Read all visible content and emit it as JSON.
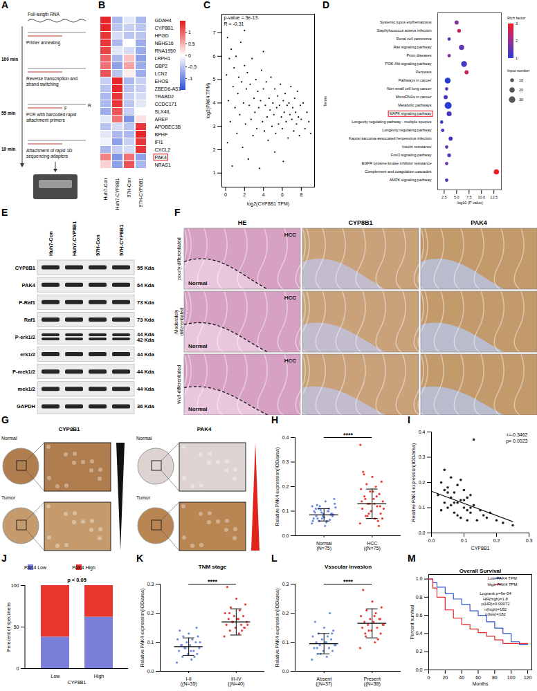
{
  "figure": {
    "A": {
      "panel": "A",
      "title": "Full-length RNA",
      "stages": [
        {
          "time": "100 min",
          "steps": [
            "Primer annealing",
            "Reverse transcription and strand switching"
          ]
        },
        {
          "time": "55 min",
          "steps": [
            "PCR with barcoded rapid attachment primers"
          ],
          "primer_labels": [
            "F",
            "R"
          ]
        },
        {
          "time": "10 min",
          "steps": [
            "Attachment of rapid 1D sequencing adapters"
          ]
        }
      ]
    },
    "E": {
      "panel": "E",
      "lanes": [
        "Huh7-Con",
        "Huh7-CYP8B1",
        "97H-Con",
        "97H-CYP8B1"
      ],
      "rows": [
        {
          "label": "CYP8B1",
          "sizes": [
            "55 Kda"
          ]
        },
        {
          "label": "PAK4",
          "sizes": [
            "64 Kda"
          ]
        },
        {
          "label": "P-Raf1",
          "sizes": [
            "73 Kda"
          ]
        },
        {
          "label": "Raf1",
          "sizes": [
            "73 Kda"
          ]
        },
        {
          "label": "P-erk1/2",
          "sizes": [
            "44 Kda",
            "42 Kda"
          ]
        },
        {
          "label": "erk1/2",
          "sizes": [
            "44 Kda"
          ]
        },
        {
          "label": "P-mek1/2",
          "sizes": [
            "44 Kda"
          ]
        },
        {
          "label": "mek1/2",
          "sizes": [
            "44 Kda"
          ]
        },
        {
          "label": "GAPDH",
          "sizes": [
            "36 Kda"
          ]
        }
      ]
    },
    "F": {
      "panel": "F",
      "columns": [
        "HE",
        "CYP8B1",
        "PAK4"
      ],
      "rows": [
        "poorly differentiated",
        "Moderately differentiated",
        "Well-differentiated"
      ],
      "region_labels": {
        "tumor": "HCC",
        "normal": "Normal"
      }
    },
    "G": {
      "panel": "G",
      "columns": [
        "CYP8B1",
        "PAK4"
      ],
      "rows": [
        "Normal",
        "Tumor"
      ]
    }
  },
  "chart_data": [
    {
      "panel": "B",
      "type": "heatmap",
      "categories": [
        "Huh7-Con",
        "Huh7-CYP8B1",
        "97H-Con",
        "97H-CYP8B1"
      ],
      "rows": [
        "GDAH4",
        "CYP8B1",
        "HPGD",
        "NBHS16",
        "RNA1950",
        "LRPH1",
        "GBP2",
        "LCN2",
        "EHOS",
        "ZBED6-AS1",
        "TRABD2",
        "CCDC171",
        "SLX4IL",
        "AREP",
        "APOBEC3B",
        "BPHF",
        "IFI1",
        "CXCL2",
        "PAK4",
        "NRAS1"
      ],
      "cells": [
        [
          1.4,
          -0.6,
          -0.2,
          -0.6
        ],
        [
          1.4,
          -0.5,
          -0.4,
          -0.5
        ],
        [
          1.3,
          -0.3,
          -0.5,
          -0.5
        ],
        [
          1.3,
          -0.6,
          0.0,
          -0.7
        ],
        [
          1.2,
          -0.2,
          -0.3,
          -0.7
        ],
        [
          1.0,
          -0.6,
          0.4,
          -0.8
        ],
        [
          0.9,
          -0.8,
          0.6,
          -0.7
        ],
        [
          1.1,
          -0.5,
          0.1,
          -0.7
        ],
        [
          -0.4,
          1.4,
          -0.6,
          -0.4
        ],
        [
          -0.5,
          1.4,
          -0.5,
          -0.4
        ],
        [
          -0.6,
          1.3,
          -0.4,
          -0.3
        ],
        [
          -0.6,
          1.3,
          -0.5,
          -0.2
        ],
        [
          -0.7,
          1.1,
          -0.4,
          0.0
        ],
        [
          -0.2,
          0.9,
          -0.9,
          0.2
        ],
        [
          -0.5,
          -0.3,
          -0.5,
          1.3
        ],
        [
          -0.2,
          -0.6,
          -0.6,
          1.4
        ],
        [
          -0.1,
          -0.8,
          -0.4,
          1.3
        ],
        [
          -0.6,
          -0.4,
          -0.3,
          1.3
        ],
        [
          0.8,
          -0.9,
          0.9,
          -0.8
        ],
        [
          0.3,
          -0.8,
          1.1,
          -0.6
        ]
      ],
      "highlight": "PAK4",
      "color_range": [
        -1.5,
        1.5
      ],
      "color_ticks": [
        -1,
        -0.5,
        0,
        0.5,
        1
      ]
    },
    {
      "panel": "C",
      "type": "scatter",
      "x_label": "log2(CYP8B1 TPM)",
      "y_label": "log2(PAK4 TPM)",
      "annotations": [
        "p-value = 3e-13",
        "R = -0.31"
      ],
      "xlim": [
        -0.4,
        9.4
      ],
      "ylim": [
        0.4,
        7.8
      ],
      "xticks": [
        0,
        2,
        4,
        6,
        8
      ],
      "yticks": [
        1,
        2,
        3,
        4,
        5,
        6,
        7
      ],
      "x": [
        0.1,
        0.2,
        0.3,
        0.4,
        0.5,
        0.2,
        0.6,
        0.8,
        0.9,
        1.0,
        1.1,
        1.2,
        1.3,
        1.4,
        1.5,
        1.6,
        1.7,
        1.8,
        1.9,
        2.0,
        2.1,
        2.2,
        2.3,
        2.4,
        2.5,
        2.6,
        2.7,
        2.8,
        2.9,
        3.0,
        3.1,
        3.2,
        3.3,
        3.4,
        3.5,
        3.6,
        3.7,
        3.8,
        3.9,
        4.0,
        4.1,
        4.2,
        4.3,
        4.4,
        4.5,
        4.6,
        4.7,
        4.8,
        4.9,
        5.0,
        5.1,
        5.2,
        5.3,
        5.4,
        5.5,
        5.6,
        5.7,
        5.8,
        5.9,
        6.0,
        6.1,
        6.2,
        6.3,
        6.4,
        6.5,
        6.6,
        6.7,
        6.8,
        6.9,
        7.0,
        7.1,
        7.2,
        7.3,
        7.4,
        7.5,
        7.6,
        7.7,
        7.8,
        7.9,
        8.0,
        8.2,
        8.4,
        8.6,
        8.8,
        9.0,
        5.2,
        6.1,
        4.0,
        2.0,
        0.7
      ],
      "y": [
        5.2,
        6.8,
        4.1,
        5.9,
        3.2,
        2.3,
        6.3,
        4.7,
        5.5,
        3.8,
        6.0,
        2.7,
        4.4,
        5.1,
        3.5,
        6.6,
        4.9,
        2.1,
        4.0,
        5.6,
        3.1,
        4.6,
        5.3,
        1.6,
        3.9,
        4.8,
        3.3,
        5.9,
        2.6,
        4.2,
        3.6,
        5.0,
        2.9,
        4.5,
        3.8,
        1.2,
        4.1,
        5.4,
        3.2,
        4.6,
        2.8,
        3.9,
        4.9,
        3.4,
        2.4,
        4.2,
        3.7,
        5.1,
        3.0,
        4.0,
        3.5,
        4.6,
        2.7,
        3.8,
        4.3,
        3.1,
        3.9,
        4.8,
        3.4,
        2.9,
        4.1,
        3.6,
        4.4,
        3.2,
        3.9,
        2.5,
        4.0,
        3.5,
        4.7,
        3.3,
        3.8,
        2.8,
        4.2,
        3.6,
        3.1,
        4.5,
        3.4,
        2.6,
        3.9,
        3.3,
        4.0,
        2.9,
        3.6,
        3.2,
        2.7,
        1.9,
        1.5,
        6.2,
        7.1,
        1.3
      ]
    },
    {
      "panel": "D",
      "type": "bubble",
      "x_label": "-log10 (P value)",
      "y_label": "Terms",
      "categories": [
        "Systemic lupus erythematosus",
        "Staphylococcus aureus infection",
        "Renal cell carcinoma",
        "Ras signaling pathway",
        "Prion diseases",
        "PI3K-Akt signaling pathway",
        "Pertussis",
        "Pathways in cancer",
        "Non-small cell lung cancer",
        "MicroRNAs in cancer",
        "Metabolic pathways",
        "MAPK signaling pathway",
        "Longevity regulating pathway - multiple species",
        "Longevity regulating pathway",
        "Kaposi sarcoma-associated herpesvirus infection",
        "Insulin resistance",
        "FoxO signaling pathway",
        "EGFR tyrosine kinase inhibitor resistance",
        "Complement and coagulation cascades",
        "AMPK signaling pathway"
      ],
      "values": [
        5.0,
        5.5,
        3.5,
        6.0,
        3.5,
        6.5,
        7.0,
        3.2,
        3.0,
        2.8,
        3.3,
        3.5,
        2.0,
        2.2,
        3.8,
        3.0,
        3.5,
        3.0,
        13.0,
        3.0
      ],
      "rich_factor": [
        1.8,
        2.5,
        1.5,
        1.5,
        1.8,
        1.2,
        2.6,
        1.0,
        1.5,
        1.3,
        1.0,
        1.3,
        1.2,
        1.2,
        1.3,
        1.5,
        1.4,
        1.6,
        3.0,
        1.3
      ],
      "input_number": [
        12,
        10,
        8,
        20,
        8,
        25,
        12,
        25,
        8,
        12,
        35,
        18,
        8,
        8,
        12,
        8,
        10,
        8,
        20,
        8
      ],
      "xlim": [
        1.2,
        14
      ],
      "xticks": [
        2.5,
        {
          "value": 5,
          "label": "5.0"
        },
        7.5,
        {
          "value": 10,
          "label": "10.0"
        },
        12.5
      ],
      "color_title": "Rich factor",
      "color_range": [
        1,
        3
      ],
      "color_ticks": [
        1,
        2,
        3
      ],
      "size_title": "Input number",
      "size_ticks": [
        10,
        20,
        30
      ],
      "highlight": "MAPK signaling pathway"
    },
    {
      "panel": "H",
      "type": "dot",
      "categories": [
        "Normal",
        "HCC"
      ],
      "n_labels": [
        "(N=75)",
        "((N=75)"
      ],
      "colors": [
        "#6d8fe0",
        "#e8413c"
      ],
      "values": [
        [
          0.05,
          0.06,
          0.07,
          0.08,
          0.09,
          0.1,
          0.11,
          0.12,
          0.13,
          0.14,
          0.08,
          0.09,
          0.07,
          0.06,
          0.1,
          0.11,
          0.085,
          0.075,
          0.095,
          0.065,
          0.105,
          0.115,
          0.055,
          0.125,
          0.09,
          0.08,
          0.07,
          0.1,
          0.06,
          0.15,
          0.04,
          0.11,
          0.085,
          0.095,
          0.12
        ],
        [
          0.05,
          0.07,
          0.08,
          0.09,
          0.1,
          0.11,
          0.12,
          0.13,
          0.14,
          0.15,
          0.16,
          0.17,
          0.18,
          0.19,
          0.2,
          0.21,
          0.22,
          0.24,
          0.26,
          0.06,
          0.09,
          0.11,
          0.13,
          0.15,
          0.12,
          0.1,
          0.14,
          0.16,
          0.08,
          0.07,
          0.18,
          0.25,
          0.04,
          0.13,
          0.37
        ]
      ],
      "mean": [
        0.085,
        0.13
      ],
      "error": [
        0.025,
        0.06
      ],
      "significance": "****",
      "y_label": "Relative PAK4 expression(IOD/area)",
      "ylim": [
        0,
        0.4
      ],
      "yticks": [
        {
          "value": 0,
          "label": "0.0"
        },
        0.1,
        0.2,
        0.3,
        0.4
      ]
    },
    {
      "panel": "I",
      "type": "scatter",
      "x_label": "CYP8B1",
      "y_label": "Relative PAK4 expression(IOD/area)",
      "annotations": [
        "r=-0.3462",
        "p= 0.0023"
      ],
      "xlim": [
        0,
        0.3
      ],
      "ylim": [
        0,
        0.4
      ],
      "xticks": [
        {
          "value": 0,
          "label": "0.0"
        },
        0.1,
        0.2,
        0.3
      ],
      "yticks": [
        {
          "value": 0,
          "label": "0.0"
        },
        0.1,
        0.2,
        0.3,
        0.4
      ],
      "x": [
        0.02,
        0.03,
        0.04,
        0.04,
        0.05,
        0.05,
        0.06,
        0.06,
        0.07,
        0.07,
        0.08,
        0.08,
        0.09,
        0.09,
        0.1,
        0.1,
        0.11,
        0.11,
        0.12,
        0.12,
        0.13,
        0.14,
        0.15,
        0.16,
        0.17,
        0.18,
        0.2,
        0.22,
        0.25,
        0.03,
        0.05,
        0.07,
        0.09,
        0.11,
        0.13,
        0.06,
        0.08,
        0.1,
        0.04,
        0.12
      ],
      "y": [
        0.15,
        0.2,
        0.12,
        0.25,
        0.18,
        0.1,
        0.22,
        0.14,
        0.16,
        0.08,
        0.19,
        0.12,
        0.13,
        0.06,
        0.17,
        0.1,
        0.14,
        0.09,
        0.08,
        0.15,
        0.11,
        0.05,
        0.09,
        0.07,
        0.06,
        0.08,
        0.05,
        0.04,
        0.03,
        0.09,
        0.16,
        0.12,
        0.21,
        0.05,
        0.37,
        0.11,
        0.07,
        0.13,
        0.17,
        0.1
      ],
      "fit": {
        "x": [
          0,
          0.25
        ],
        "y": [
          0.165,
          0.045
        ]
      }
    },
    {
      "panel": "J",
      "type": "bar",
      "stacked": true,
      "categories": [
        "Low",
        "High"
      ],
      "x_label": "CYP8B1",
      "y_label": "Perecent of specimens",
      "ylim": [
        0,
        100
      ],
      "yticks": [
        0,
        50,
        100
      ],
      "legend": "top",
      "annotations": [
        "p < 0.05"
      ],
      "series": [
        {
          "name": "PAK4 Low",
          "color": "#7b7fd9",
          "values": [
            38,
            62
          ]
        },
        {
          "name": "PAK4 High",
          "color": "#e8352e",
          "values": [
            62,
            38
          ]
        }
      ]
    },
    {
      "panel": "K",
      "type": "dot",
      "title": "TNM stage",
      "categories": [
        "I-II",
        "III-IV"
      ],
      "n_labels": [
        "((N=35)",
        "((N=40)"
      ],
      "colors": [
        "#6d8fe0",
        "#e8413c"
      ],
      "values": [
        [
          0.03,
          0.04,
          0.05,
          0.06,
          0.06,
          0.07,
          0.07,
          0.08,
          0.08,
          0.09,
          0.09,
          0.1,
          0.1,
          0.11,
          0.11,
          0.12,
          0.12,
          0.13,
          0.14,
          0.05,
          0.08,
          0.1,
          0.07,
          0.09,
          0.15
        ],
        [
          0.12,
          0.13,
          0.14,
          0.15,
          0.15,
          0.16,
          0.16,
          0.17,
          0.17,
          0.18,
          0.18,
          0.19,
          0.19,
          0.2,
          0.21,
          0.22,
          0.23,
          0.25,
          0.29,
          0.14,
          0.17,
          0.16,
          0.18,
          0.2,
          0.15
        ]
      ],
      "mean": [
        0.085,
        0.17
      ],
      "error": [
        0.03,
        0.045
      ],
      "significance": "****",
      "y_label": "Relative PAK4 expression(IOD/area)",
      "ylim": [
        0,
        0.3
      ],
      "yticks": [
        {
          "value": 0,
          "label": "0.0"
        },
        0.1,
        0.2,
        0.3
      ]
    },
    {
      "panel": "L",
      "type": "dot",
      "title": "Vsscular invasion",
      "categories": [
        "Absent",
        "Present"
      ],
      "n_labels": [
        "((N=37)",
        "((N=38)"
      ],
      "colors": [
        "#6d8fe0",
        "#e8413c"
      ],
      "values": [
        [
          0.04,
          0.05,
          0.06,
          0.07,
          0.07,
          0.08,
          0.08,
          0.09,
          0.09,
          0.1,
          0.1,
          0.11,
          0.11,
          0.12,
          0.12,
          0.13,
          0.14,
          0.15,
          0.17,
          0.2,
          0.06,
          0.09,
          0.1,
          0.08,
          0.13
        ],
        [
          0.08,
          0.1,
          0.12,
          0.13,
          0.14,
          0.15,
          0.15,
          0.16,
          0.16,
          0.17,
          0.17,
          0.18,
          0.18,
          0.19,
          0.2,
          0.21,
          0.22,
          0.24,
          0.28,
          0.11,
          0.14,
          0.16,
          0.19,
          0.13,
          0.18
        ]
      ],
      "mean": [
        0.095,
        0.165
      ],
      "error": [
        0.035,
        0.05
      ],
      "significance": "****",
      "y_label": "Relative PAK4 expression(IOD/area)",
      "ylim": [
        0,
        0.3
      ],
      "yticks": [
        {
          "value": 0,
          "label": "0.0"
        },
        0.1,
        0.2,
        0.3
      ]
    },
    {
      "panel": "M",
      "type": "line",
      "title": "Overall Survival",
      "x_label": "Months",
      "y_label": "Percent survival",
      "legend": "top-right",
      "x": [
        0,
        5,
        10,
        20,
        30,
        40,
        50,
        60,
        70,
        80,
        90,
        100,
        110,
        120
      ],
      "series": [
        {
          "name": "Low PAK4 TPM",
          "color": "#2f55c9",
          "values": [
            1,
            0.96,
            0.91,
            0.84,
            0.78,
            0.72,
            0.65,
            0.6,
            0.53,
            0.46,
            0.4,
            0.31,
            0.28,
            0.28
          ]
        },
        {
          "name": "High PAK4 TPM",
          "color": "#e8262a",
          "values": [
            1,
            0.9,
            0.8,
            0.66,
            0.57,
            0.5,
            0.45,
            0.41,
            0.37,
            0.33,
            0.29,
            0.29,
            0.29,
            0.29
          ]
        }
      ],
      "annotations": [
        "Logrank p=6e-04",
        "HR(high)=1.8",
        "p(HR)=0.00072",
        "n(high)=182",
        "n(low)=182"
      ],
      "xlim": [
        0,
        125
      ],
      "ylim": [
        0,
        1.05
      ],
      "xticks": [
        0,
        20,
        40,
        60,
        80,
        100,
        120
      ],
      "yticks": [
        {
          "value": 0,
          "label": "0.0"
        },
        0.2,
        0.4,
        0.6,
        0.8,
        {
          "value": 1,
          "label": "1.0"
        }
      ]
    }
  ]
}
